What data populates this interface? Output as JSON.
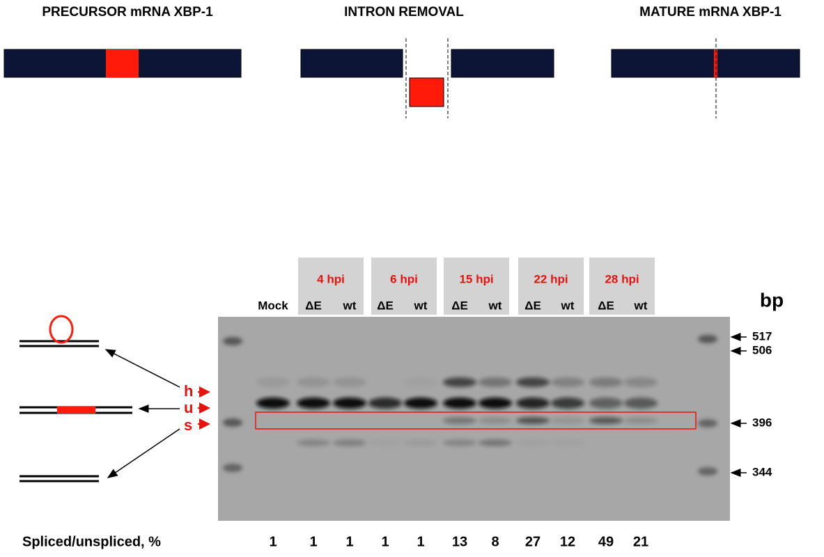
{
  "panels": [
    {
      "title": "PRECURSOR mRNA XBP-1"
    },
    {
      "title": "INTRON REMOVAL"
    },
    {
      "title": "MATURE mRNA XBP-1"
    }
  ],
  "gel": {
    "timepoints": [
      "4 hpi",
      "6 hpi",
      "15 hpi",
      "22 hpi",
      "28 hpi"
    ],
    "lanes": [
      "Mock",
      "ΔE",
      "wt",
      "ΔE",
      "wt",
      "ΔE",
      "wt",
      "ΔE",
      "wt",
      "ΔE",
      "wt"
    ],
    "size_unit": "bp",
    "markers": [
      517,
      506,
      396,
      344
    ],
    "band_labels": [
      "h",
      "u",
      "s"
    ],
    "spliced_label": "Spliced/unspliced, %",
    "spliced_values": [
      1,
      1,
      1,
      1,
      1,
      13,
      8,
      27,
      12,
      49,
      21
    ]
  }
}
